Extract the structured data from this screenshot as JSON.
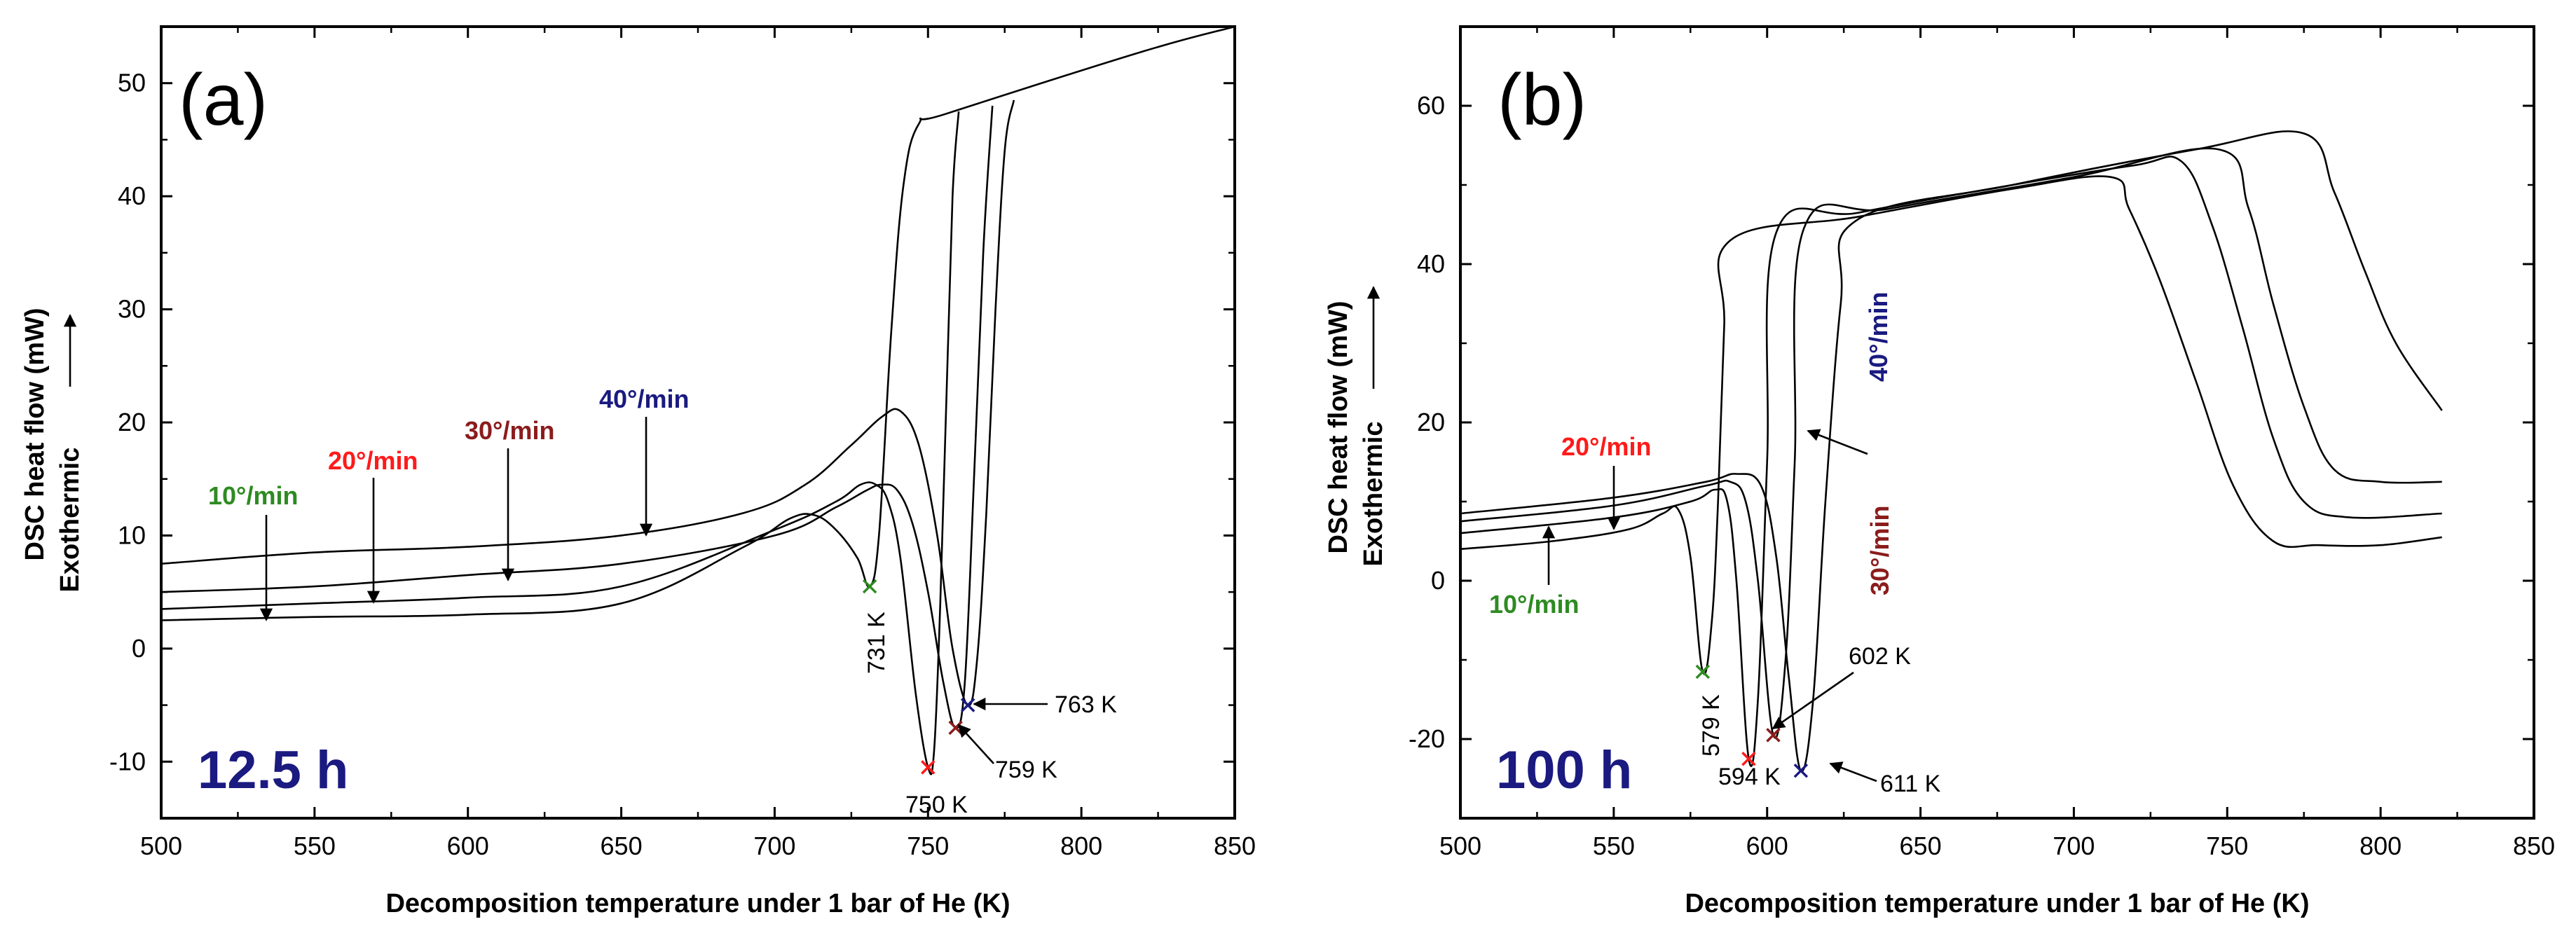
{
  "colors": {
    "green": "#2e8b22",
    "red": "#ff1a1a",
    "darkred": "#8b1c1c",
    "navy": "#1a1a80",
    "black": "#000000"
  },
  "chart_data": [
    {
      "type": "line",
      "panel": "(a)",
      "annotation": "12.5 h",
      "xlabel": "Decomposition temperature under 1 bar of He (K)",
      "ylabel": "DSC heat flow (mW)",
      "ylabel_prefix": "Exothermic",
      "xlim": [
        500,
        850
      ],
      "ylim": [
        -15,
        55
      ],
      "xticks": [
        500,
        550,
        600,
        650,
        700,
        750,
        800,
        850
      ],
      "yticks": [
        -10,
        0,
        10,
        20,
        30,
        40,
        50
      ],
      "xtick_labels": [
        "500",
        "550",
        "600",
        "650",
        "700",
        "750",
        "800",
        "850"
      ],
      "ytick_labels": [
        "-10",
        "0",
        "10",
        "20",
        "30",
        "40",
        "50"
      ],
      "series": [
        {
          "name": "10°/min",
          "color_key": "green",
          "x": [
            500,
            550,
            600,
            650,
            690,
            705,
            713,
            720,
            727,
            731,
            734,
            738,
            742,
            747,
            756,
            820,
            850
          ],
          "y": [
            2.5,
            2.8,
            3.0,
            4.0,
            9.0,
            11.5,
            11.8,
            10.5,
            8.0,
            5.5,
            10.0,
            28.0,
            41.0,
            46.4,
            47.3,
            52.8,
            55.0
          ]
        },
        {
          "name": "20°/min",
          "color_key": "red",
          "x": [
            500,
            550,
            600,
            650,
            700,
            720,
            728,
            733,
            737,
            741,
            746,
            750,
            752,
            754,
            756,
            758,
            760
          ],
          "y": [
            3.5,
            4.0,
            4.5,
            5.5,
            10.5,
            13.0,
            14.5,
            14.5,
            13.0,
            8.0,
            -4.0,
            -10.5,
            -9.0,
            4.0,
            22.0,
            40.0,
            47.5
          ]
        },
        {
          "name": "30°/min",
          "color_key": "darkred",
          "x": [
            500,
            550,
            600,
            650,
            700,
            720,
            730,
            735,
            740,
            745,
            750,
            755,
            759,
            762,
            765,
            768,
            771
          ],
          "y": [
            5.0,
            5.5,
            6.5,
            7.5,
            10.0,
            12.5,
            14.0,
            14.5,
            14.0,
            11.0,
            5.0,
            -3.0,
            -7.0,
            -3.0,
            15.0,
            35.0,
            48.0
          ]
        },
        {
          "name": "40°/min",
          "color_key": "navy",
          "x": [
            500,
            550,
            600,
            650,
            690,
            710,
            725,
            735,
            741,
            747,
            753,
            758,
            763,
            766,
            769,
            772,
            775,
            778
          ],
          "y": [
            7.5,
            8.5,
            9.0,
            10.0,
            12.0,
            14.5,
            18.0,
            20.5,
            21.0,
            18.0,
            10.0,
            0.0,
            -5.0,
            -1.0,
            12.0,
            30.0,
            44.0,
            48.5
          ]
        }
      ],
      "series_labels": [
        {
          "text": "10°/min",
          "color_key": "green"
        },
        {
          "text": "20°/min",
          "color_key": "red"
        },
        {
          "text": "30°/min",
          "color_key": "darkred"
        },
        {
          "text": "40°/min",
          "color_key": "navy"
        }
      ],
      "peaks": [
        {
          "label": "731 K",
          "x": 731,
          "y": 5.5,
          "color_key": "green"
        },
        {
          "label": "750 K",
          "x": 750,
          "y": -10.5,
          "color_key": "red"
        },
        {
          "label": "759 K",
          "x": 759,
          "y": -7.0,
          "color_key": "darkred"
        },
        {
          "label": "763 K",
          "x": 763,
          "y": -5.0,
          "color_key": "navy"
        }
      ]
    },
    {
      "type": "line",
      "panel": "(b)",
      "annotation": "100 h",
      "xlabel": "Decomposition temperature under 1 bar of He (K)",
      "ylabel": "DSC heat flow (mW)",
      "ylabel_prefix": "Exothermic",
      "xlim": [
        500,
        850
      ],
      "ylim": [
        -30,
        70
      ],
      "xticks": [
        500,
        550,
        600,
        650,
        700,
        750,
        800,
        850
      ],
      "yticks": [
        -20,
        0,
        20,
        40,
        60
      ],
      "xtick_labels": [
        "500",
        "550",
        "600",
        "650",
        "700",
        "750",
        "800",
        "850"
      ],
      "ytick_labels": [
        "-20",
        "0",
        "20",
        "40",
        "60"
      ],
      "series": [
        {
          "name": "10°/min",
          "color_key": "green",
          "x": [
            500,
            530,
            555,
            566,
            571,
            575,
            579,
            582,
            584,
            586,
            588,
            630,
            680,
            712,
            718,
            728,
            740,
            752,
            765,
            780,
            800,
            820
          ],
          "y": [
            4.0,
            5.0,
            6.5,
            8.5,
            9.0,
            3.0,
            -11.5,
            -5.0,
            10.0,
            32.0,
            43.0,
            46.0,
            49.5,
            51.0,
            47.0,
            38.0,
            25.0,
            12.0,
            5.0,
            4.5,
            4.5,
            5.5
          ]
        },
        {
          "name": "20°/min",
          "color_key": "red",
          "x": [
            500,
            550,
            575,
            583,
            587,
            590,
            594,
            597,
            600,
            603,
            630,
            680,
            720,
            735,
            745,
            755,
            765,
            775,
            790,
            820
          ],
          "y": [
            6.0,
            8.0,
            10.0,
            11.5,
            10.0,
            0.0,
            -22.5,
            -15.0,
            15.0,
            44.0,
            46.5,
            50.0,
            52.5,
            53.0,
            45.0,
            32.0,
            18.0,
            10.0,
            8.0,
            8.5
          ]
        },
        {
          "name": "30°/min",
          "color_key": "darkred",
          "x": [
            500,
            550,
            580,
            588,
            593,
            597,
            602,
            606,
            609,
            612,
            640,
            700,
            747,
            757,
            765,
            775,
            785,
            800,
            820
          ],
          "y": [
            7.5,
            9.5,
            12.0,
            12.5,
            10.0,
            0.0,
            -19.5,
            -10.0,
            15.0,
            44.5,
            47.0,
            51.0,
            54.5,
            47.0,
            35.0,
            22.0,
            14.0,
            12.5,
            12.5
          ]
        },
        {
          "name": "40°/min",
          "color_key": "navy",
          "x": [
            500,
            550,
            580,
            590,
            598,
            603,
            607,
            611,
            615,
            619,
            624,
            629,
            680,
            740,
            775,
            785,
            795,
            805,
            820
          ],
          "y": [
            8.5,
            10.5,
            12.5,
            13.5,
            12.0,
            3.0,
            -12.0,
            -24.0,
            -15.0,
            10.0,
            35.0,
            45.5,
            50.0,
            54.5,
            56.5,
            49.0,
            39.0,
            30.0,
            21.5
          ]
        }
      ],
      "series_labels": [
        {
          "text": "10°/min",
          "color_key": "green"
        },
        {
          "text": "20°/min",
          "color_key": "red"
        },
        {
          "text": "30°/min",
          "color_key": "darkred"
        },
        {
          "text": "40°/min",
          "color_key": "navy"
        }
      ],
      "peaks": [
        {
          "label": "579 K",
          "x": 579,
          "y": -11.5,
          "color_key": "green"
        },
        {
          "label": "594 K",
          "x": 594,
          "y": -22.5,
          "color_key": "red"
        },
        {
          "label": "602 K",
          "x": 602,
          "y": -19.5,
          "color_key": "darkred"
        },
        {
          "label": "611 K",
          "x": 611,
          "y": -24.0,
          "color_key": "navy"
        }
      ]
    }
  ]
}
